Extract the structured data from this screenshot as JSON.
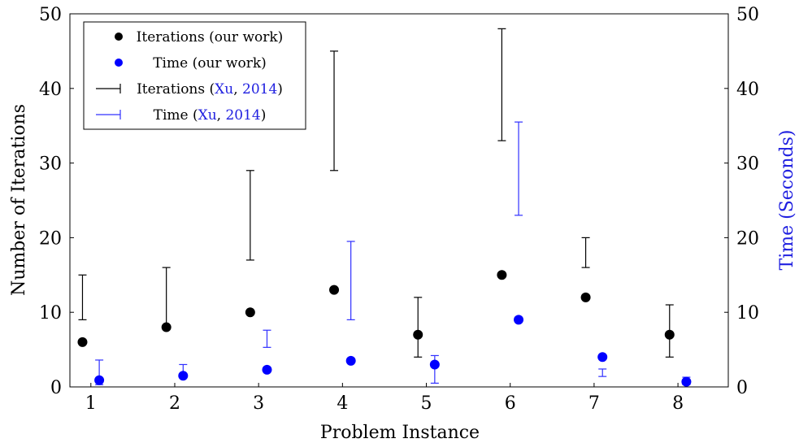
{
  "chart_data": {
    "type": "scatter",
    "xlabel": "Problem Instance",
    "ylabel_left": "Number of Iterations",
    "ylabel_right": "Time (Seconds)",
    "x_ticks": [
      "1",
      "2",
      "3",
      "4",
      "5",
      "6",
      "7",
      "8"
    ],
    "y_left_ticks": [
      "0",
      "10",
      "20",
      "30",
      "40",
      "50"
    ],
    "y_right_ticks": [
      "0",
      "10",
      "20",
      "30",
      "40",
      "50"
    ],
    "x": [
      1,
      2,
      3,
      4,
      5,
      6,
      7,
      8
    ],
    "xlim": [
      0.75,
      8.6
    ],
    "ylim_left": [
      0,
      50
    ],
    "ylim_right": [
      0,
      50
    ],
    "colors": {
      "iterations": "#000000",
      "time": "#0000ff",
      "time_range": "#3030ff",
      "cite": "#2020e0"
    },
    "legend": {
      "position": "top-left",
      "entries": [
        {
          "marker": "dot",
          "color": "#000000",
          "text": "Iterations (our work)"
        },
        {
          "marker": "dot",
          "color": "#0000ff",
          "text": "Time (our work)"
        },
        {
          "marker": "bar",
          "color": "#000000",
          "prefix": "Iterations (",
          "cite_author": "Xu",
          "sep": ", ",
          "cite_year": "2014",
          "suffix": ")"
        },
        {
          "marker": "bar",
          "color": "#3030ff",
          "prefix": "Time (",
          "cite_author": "Xu",
          "sep": ", ",
          "cite_year": "2014",
          "suffix": ")"
        }
      ]
    },
    "series": [
      {
        "name": "Iterations (our work)",
        "axis": "left",
        "values": [
          6,
          8,
          10,
          13,
          7,
          15,
          12,
          7
        ]
      },
      {
        "name": "Time (our work)",
        "axis": "right",
        "values": [
          0.9,
          1.5,
          2.3,
          3.5,
          3.0,
          9.0,
          4.0,
          0.7
        ]
      },
      {
        "name": "Iterations (Xu, 2014)",
        "axis": "left",
        "type": "range",
        "low": [
          9,
          8,
          17,
          29,
          4,
          33,
          16,
          4
        ],
        "high": [
          15,
          16,
          29,
          45,
          12,
          48,
          20,
          11
        ]
      },
      {
        "name": "Time (Xu, 2014)",
        "axis": "right",
        "type": "range",
        "low": [
          0.3,
          1.3,
          5.3,
          9.0,
          0.5,
          23.0,
          1.4,
          0.3
        ],
        "high": [
          3.6,
          3.0,
          7.6,
          19.5,
          4.2,
          35.5,
          2.4,
          1.3
        ]
      }
    ]
  }
}
